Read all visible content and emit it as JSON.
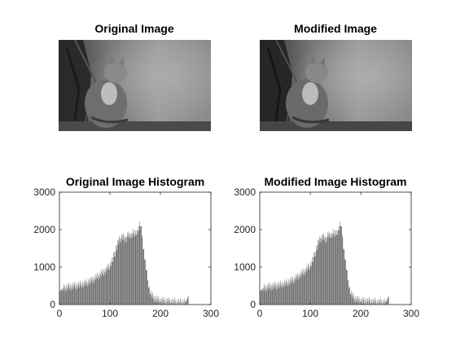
{
  "figure": {
    "panels": {
      "original_image": {
        "title": "Original Image"
      },
      "modified_image": {
        "title": "Modified Image"
      }
    }
  },
  "chart_data": [
    {
      "type": "bar",
      "title": "Original Image Histogram",
      "xlabel": "",
      "ylabel": "",
      "xlim": [
        0,
        300
      ],
      "ylim": [
        0,
        3000
      ],
      "xticks": [
        "0",
        "100",
        "200",
        "300"
      ],
      "yticks": [
        "0",
        "1000",
        "2000",
        "3000"
      ],
      "grid": false,
      "bar_color": "#4d4d4d",
      "anchors_x": [
        0,
        5,
        10,
        20,
        30,
        40,
        50,
        60,
        70,
        80,
        90,
        100,
        105,
        110,
        115,
        120,
        125,
        130,
        135,
        140,
        145,
        150,
        155,
        160,
        163,
        165,
        170,
        175,
        180,
        185,
        190,
        195,
        200,
        210,
        220,
        230,
        240,
        250,
        254,
        256,
        258,
        260
      ],
      "anchors_y": [
        350,
        420,
        450,
        480,
        500,
        520,
        560,
        620,
        700,
        800,
        900,
        1050,
        1200,
        1400,
        1650,
        1750,
        1850,
        1700,
        1900,
        1800,
        1950,
        1850,
        2000,
        2150,
        1900,
        1600,
        1100,
        600,
        300,
        200,
        150,
        120,
        100,
        90,
        80,
        70,
        60,
        70,
        200,
        250,
        30,
        0
      ]
    },
    {
      "type": "bar",
      "title": "Modified Image Histogram",
      "xlabel": "",
      "ylabel": "",
      "xlim": [
        0,
        300
      ],
      "ylim": [
        0,
        3000
      ],
      "xticks": [
        "0",
        "100",
        "200",
        "300"
      ],
      "yticks": [
        "0",
        "1000",
        "2000",
        "3000"
      ],
      "grid": false,
      "bar_color": "#4d4d4d",
      "anchors_x": [
        0,
        5,
        10,
        20,
        30,
        40,
        50,
        60,
        70,
        80,
        90,
        100,
        105,
        110,
        115,
        120,
        125,
        130,
        135,
        140,
        145,
        150,
        155,
        160,
        163,
        165,
        170,
        175,
        180,
        185,
        190,
        195,
        200,
        210,
        220,
        230,
        240,
        250,
        254,
        256,
        258,
        260
      ],
      "anchors_y": [
        350,
        420,
        450,
        480,
        500,
        520,
        560,
        620,
        700,
        800,
        900,
        1050,
        1200,
        1400,
        1650,
        1750,
        1850,
        1700,
        1900,
        1800,
        1950,
        1850,
        2000,
        2150,
        1900,
        1600,
        1100,
        600,
        300,
        200,
        150,
        120,
        100,
        90,
        80,
        70,
        60,
        70,
        200,
        250,
        30,
        0
      ]
    }
  ]
}
